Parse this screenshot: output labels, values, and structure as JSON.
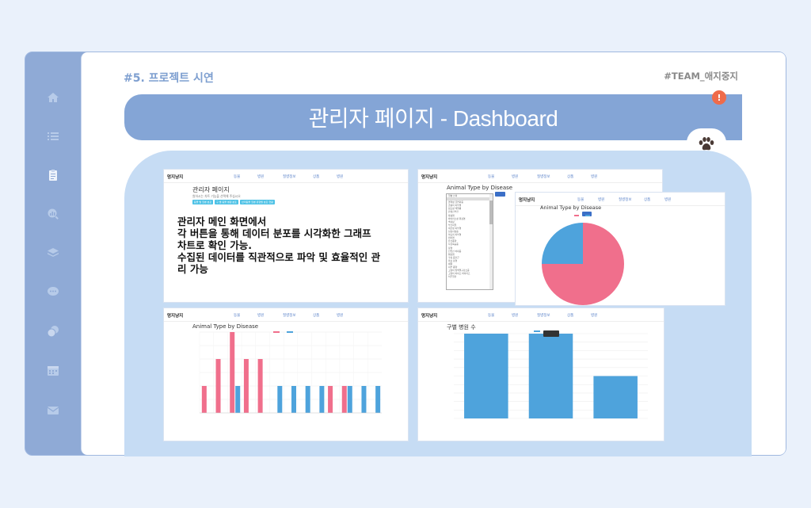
{
  "header": {
    "section_label": "#5. 프로젝트 시연",
    "team_label": "#TEAM_애지중지",
    "banner_title": "관리자 페이지 - Dashboard",
    "alert": "!"
  },
  "sidebar": {
    "icons": [
      "home-icon",
      "list-icon",
      "clipboard-icon",
      "search-chart-icon",
      "layers-icon",
      "chat-icon",
      "coins-icon",
      "calendar-icon",
      "mail-icon"
    ]
  },
  "screens": {
    "nav": {
      "brand": "멍지냥지",
      "links": [
        "동물",
        "병원",
        "질병정보",
        "상품",
        "병원"
      ]
    },
    "admin": {
      "title": "관리자 페이지",
      "subtitle": "원하시는 차트 기능을 선택해 주십시오",
      "buttons": [
        "동물 별 질병 분포",
        "구 별 동물 병원 분포",
        "반려동물 질병 유형별 분포 현황"
      ],
      "description": [
        "관리자 메인 화면에서",
        "각 버튼을 통해 데이터 분포를 시각화한 그래프",
        "차트로 확인 가능.",
        "수집된 데이터를 직관적으로 파악 및 효율적인 관",
        "리 가능"
      ]
    },
    "dropdown": {
      "title": "Animal Type by Disease",
      "items": [
        "질병 선택",
        "",
        "결핵성 골연화증",
        "곰팡이 피부염",
        "림프성 백혈병",
        "만성신부전",
        "방광염",
        "바이러스성 위장염",
        "백내장",
        "부신피질",
        "세균성 피부염",
        "심장사상충",
        "아토피 피부염",
        "외이염",
        "유선종양",
        "자궁축농증",
        "장염",
        "전립선 비대증",
        "췌장염",
        "쿠싱 증후군",
        "파보 장염",
        "폐렴",
        "피부 종양",
        "고양이 범백혈구감소증",
        "고양이 허피스 바이러스",
        "치주질환"
      ]
    },
    "chart_titles": {
      "pie": "Animal Type by Disease",
      "bar": "Animal Type by Disease",
      "hospital": "구별 병원 수"
    }
  },
  "chart_data": [
    {
      "type": "pie",
      "title": "Animal Type by Disease",
      "values": [
        75,
        25
      ],
      "colors": [
        "#f06f8c",
        "#4ea3dc"
      ]
    },
    {
      "type": "bar",
      "title": "Animal Type by Disease",
      "series": [
        {
          "values": [
            2,
            4,
            6,
            4,
            4,
            0,
            0,
            0,
            0,
            2,
            2,
            0,
            0
          ],
          "color": "#f06f8c"
        },
        {
          "values": [
            0,
            0,
            2,
            0,
            0,
            2,
            2,
            2,
            2,
            0,
            2,
            2,
            2
          ],
          "color": "#4ea3dc"
        }
      ]
    },
    {
      "type": "bar",
      "title": "구별 병원 수",
      "values": [
        5,
        5,
        2.5
      ],
      "color": "#4ea3dc"
    }
  ]
}
